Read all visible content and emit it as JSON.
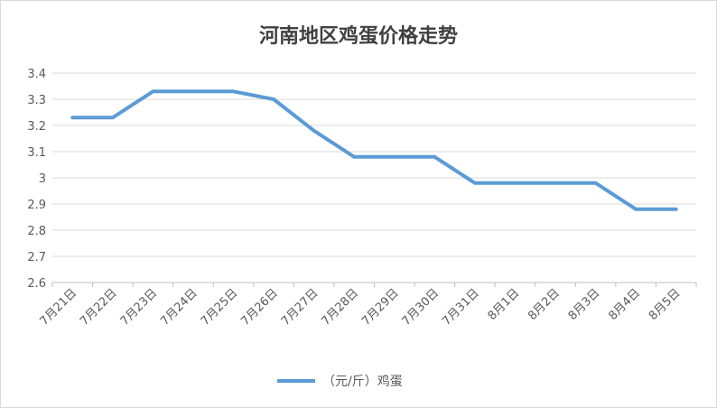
{
  "chart_data": {
    "type": "line",
    "title": "河南地区鸡蛋价格走势",
    "categories": [
      "7月21日",
      "7月22日",
      "7月23日",
      "7月24日",
      "7月25日",
      "7月26日",
      "7月27日",
      "7月28日",
      "7月29日",
      "7月30日",
      "7月31日",
      "8月1日",
      "8月2日",
      "8月3日",
      "8月4日",
      "8月5日"
    ],
    "series": [
      {
        "name": "（元/斤）鸡蛋",
        "values": [
          3.23,
          3.23,
          3.33,
          3.33,
          3.33,
          3.3,
          3.18,
          3.08,
          3.08,
          3.08,
          2.98,
          2.98,
          2.98,
          2.98,
          2.88,
          2.88
        ],
        "color": "#5b9bd5"
      }
    ],
    "yticks": [
      "2.6",
      "2.7",
      "2.8",
      "2.9",
      "3",
      "3.1",
      "3.2",
      "3.3",
      "3.4"
    ],
    "ylim": [
      2.6,
      3.4
    ],
    "grid": true,
    "legend_position": "bottom"
  }
}
